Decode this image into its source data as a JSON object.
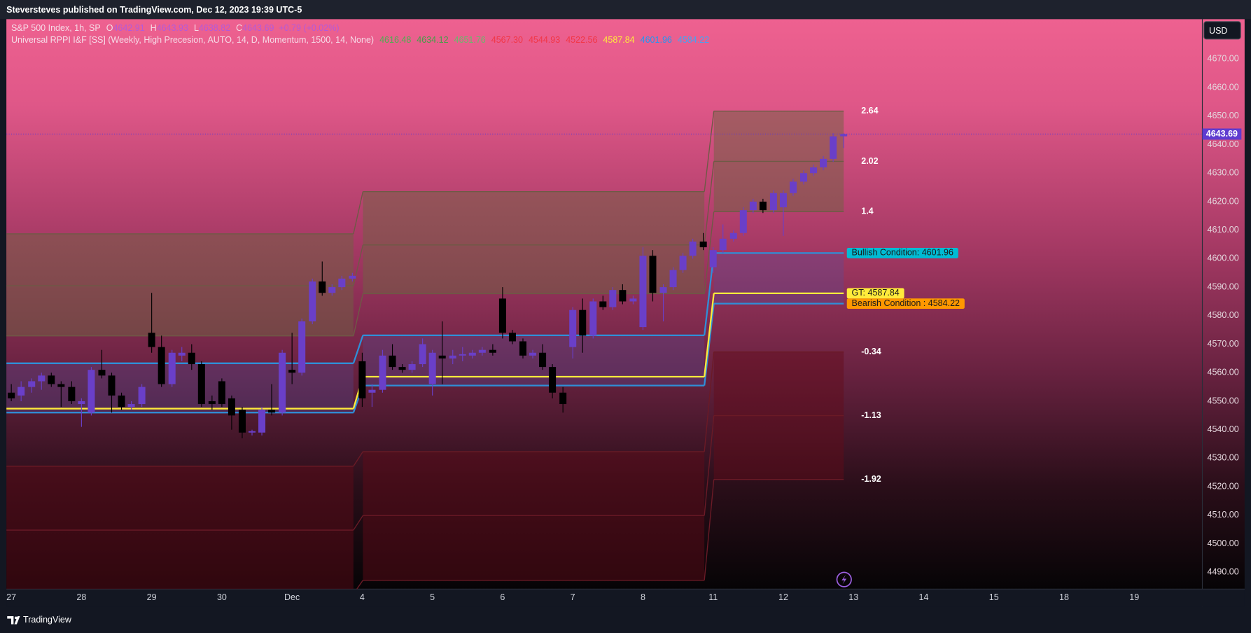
{
  "header": {
    "published": "Steversteves published on TradingView.com, Dec 12, 2023 19:39 UTC-5"
  },
  "footer": {
    "brand": "TradingView"
  },
  "chart_data": {
    "type": "candlestick",
    "legend": {
      "symbol": "S&P 500 Index, 1h, SP",
      "ohlc": [
        {
          "key": "O",
          "text": "4642.91"
        },
        {
          "key": "H",
          "text": "4643.93"
        },
        {
          "key": "L",
          "text": "4638.82"
        },
        {
          "key": "C",
          "text": "4643.69"
        }
      ],
      "change": "+0.79 (+0.02%)",
      "color": "#b45ad8"
    },
    "indicator": {
      "name": "Universal RPPI I&F [SS] (Weekly, High Precesion, AUTO, 14, D, Momentum, 1500, 14, None)",
      "values": [
        {
          "text": "4616.48",
          "color": "#4caf50"
        },
        {
          "text": "4634.12",
          "color": "#43a047"
        },
        {
          "text": "4651.76",
          "color": "#66bb6a"
        },
        {
          "text": "4567.30",
          "color": "#f23645"
        },
        {
          "text": "4544.93",
          "color": "#f23645"
        },
        {
          "text": "4522.56",
          "color": "#f23645"
        },
        {
          "text": "4587.84",
          "color": "#ffeb3b"
        },
        {
          "text": "4601.96",
          "color": "#2196f3"
        },
        {
          "text": "4584.22",
          "color": "#42a5f5"
        }
      ]
    },
    "currency": "USD",
    "x": [
      0,
      0.14,
      0.29,
      0.43,
      0.57,
      0.71,
      0.86,
      1,
      1.14,
      1.29,
      1.43,
      1.57,
      1.71,
      1.86,
      2,
      2.14,
      2.29,
      2.43,
      2.57,
      2.71,
      2.86,
      3,
      3.14,
      3.29,
      3.43,
      3.57,
      3.71,
      3.86,
      4,
      4.14,
      4.29,
      4.43,
      4.57,
      4.71,
      4.86,
      5,
      5.14,
      5.29,
      5.43,
      5.57,
      5.71,
      5.86,
      6,
      6.14,
      6.29,
      6.43,
      6.57,
      6.71,
      6.86,
      7,
      7.14,
      7.29,
      7.43,
      7.57,
      7.71,
      7.86,
      8,
      8.14,
      8.29,
      8.43,
      8.57,
      8.71,
      8.86,
      9,
      9.14,
      9.29,
      9.43,
      9.57,
      9.71,
      9.86,
      10,
      10.14,
      10.29,
      10.43,
      10.57,
      10.71,
      10.86,
      11,
      11.14,
      11.29,
      11.43,
      11.57,
      11.71,
      11.86
    ],
    "open": [
      4553,
      4552,
      4555,
      4557,
      4559,
      4556,
      4555,
      4549,
      4546,
      4561,
      4559,
      4552,
      4548,
      4549,
      4574,
      4569,
      4556,
      4566,
      4567,
      4563,
      4550,
      4557,
      4551,
      4547,
      4539,
      4539,
      4547,
      4546,
      4561,
      4560,
      4578,
      4592,
      4588,
      4590,
      4593,
      4564,
      4553,
      4554,
      4566,
      4562,
      4561,
      4563,
      4556,
      4566,
      4565,
      4566,
      4566,
      4567,
      4568,
      4586,
      4574,
      4571,
      4566,
      4567,
      4562,
      4553,
      4569,
      4582,
      4573,
      4585,
      4583,
      4589,
      4585,
      4576,
      4601,
      4588,
      4590,
      4596,
      4601,
      4606,
      4597,
      4603,
      4607,
      4609,
      4617,
      4620,
      4617,
      4618,
      4623,
      4627,
      4630,
      4632,
      4635,
      4642.91
    ],
    "high": [
      4556,
      4557,
      4558,
      4560,
      4560,
      4557,
      4557,
      4551,
      4562,
      4568,
      4560,
      4553,
      4550,
      4556,
      4588,
      4573,
      4568,
      4569,
      4570,
      4564,
      4552,
      4558,
      4552,
      4548,
      4540,
      4548,
      4556,
      4568,
      4574,
      4579,
      4593,
      4599,
      4591,
      4594,
      4595,
      4567,
      4556,
      4568,
      4570,
      4563,
      4564,
      4572,
      4568,
      4578,
      4568,
      4569,
      4568,
      4569,
      4570,
      4590,
      4575,
      4572,
      4568,
      4570,
      4563,
      4555,
      4583,
      4586,
      4586,
      4587,
      4590,
      4591,
      4587,
      4604,
      4603,
      4591,
      4597,
      4602,
      4607,
      4609,
      4604,
      4612,
      4610,
      4618,
      4621,
      4621,
      4624,
      4624,
      4628,
      4631,
      4633,
      4636,
      4644,
      4643.93
    ],
    "low": [
      4550,
      4550,
      4553,
      4554,
      4555,
      4548,
      4549,
      4541,
      4545,
      4558,
      4546,
      4547,
      4547,
      4548,
      4567,
      4555,
      4555,
      4564,
      4561,
      4548,
      4547,
      4548,
      4540,
      4537,
      4538,
      4538,
      4545,
      4545,
      4556,
      4559,
      4577,
      4587,
      4587,
      4589,
      4592,
      4548,
      4548,
      4553,
      4561,
      4560,
      4560,
      4562,
      4552,
      4556,
      4563,
      4564,
      4565,
      4566,
      4566,
      4572,
      4570,
      4565,
      4565,
      4561,
      4551,
      4546,
      4565,
      4567,
      4572,
      4582,
      4582,
      4584,
      4584,
      4575,
      4585,
      4578,
      4589,
      4595,
      4600,
      4603,
      4595,
      4602,
      4606,
      4608,
      4616,
      4616,
      4616,
      4608,
      4622,
      4626,
      4629,
      4631,
      4634,
      4638.82
    ],
    "close": [
      4551,
      4555,
      4557,
      4559,
      4556,
      4555,
      4550,
      4550,
      4561,
      4559,
      4552,
      4548,
      4549,
      4555,
      4569,
      4556,
      4567,
      4567,
      4563,
      4549,
      4549,
      4549,
      4545,
      4539,
      4539.5,
      4547,
      4546,
      4567,
      4560,
      4578,
      4592,
      4588,
      4590,
      4593,
      4594,
      4551,
      4554,
      4566,
      4562,
      4561,
      4563,
      4570,
      4567,
      4565,
      4566,
      4566.5,
      4567,
      4568,
      4567,
      4574,
      4571,
      4566,
      4567,
      4562,
      4553,
      4549,
      4582,
      4573,
      4585,
      4583,
      4589,
      4585,
      4586,
      4601,
      4588,
      4590,
      4596,
      4601,
      4606,
      4604,
      4603,
      4607,
      4609,
      4617,
      4620,
      4617,
      4623,
      4623,
      4627,
      4630,
      4632,
      4635,
      4642.9,
      4643.69
    ],
    "up_color": "#6a3fc8",
    "down_color": "#000000",
    "price_line_color": "#5e3bd0",
    "xlim": [
      -0.07,
      16.97
    ],
    "xticks": [
      {
        "value": 0,
        "label": "27"
      },
      {
        "value": 1,
        "label": "28"
      },
      {
        "value": 2,
        "label": "29"
      },
      {
        "value": 3,
        "label": "30"
      },
      {
        "value": 4,
        "label": "Dec"
      },
      {
        "value": 5,
        "label": "4"
      },
      {
        "value": 6,
        "label": "5"
      },
      {
        "value": 7,
        "label": "6"
      },
      {
        "value": 8,
        "label": "7"
      },
      {
        "value": 9,
        "label": "8"
      },
      {
        "value": 10,
        "label": "11"
      },
      {
        "value": 11,
        "label": "12"
      },
      {
        "value": 12,
        "label": "13"
      },
      {
        "value": 13,
        "label": "14"
      },
      {
        "value": 14,
        "label": "15"
      },
      {
        "value": 15,
        "label": "18"
      },
      {
        "value": 16,
        "label": "19"
      }
    ],
    "ylim": [
      4484.1,
      4684
    ],
    "yticks": [
      {
        "value": 4490,
        "label": "4490.00"
      },
      {
        "value": 4500,
        "label": "4500.00"
      },
      {
        "value": 4510,
        "label": "4510.00"
      },
      {
        "value": 4520,
        "label": "4520.00"
      },
      {
        "value": 4530,
        "label": "4530.00"
      },
      {
        "value": 4540,
        "label": "4540.00"
      },
      {
        "value": 4550,
        "label": "4550.00"
      },
      {
        "value": 4560,
        "label": "4560.00"
      },
      {
        "value": 4570,
        "label": "4570.00"
      },
      {
        "value": 4580,
        "label": "4580.00"
      },
      {
        "value": 4590,
        "label": "4590.00"
      },
      {
        "value": 4600,
        "label": "4600.00"
      },
      {
        "value": 4610,
        "label": "4610.00"
      },
      {
        "value": 4620,
        "label": "4620.00"
      },
      {
        "value": 4630,
        "label": "4630.00"
      },
      {
        "value": 4640,
        "label": "4640.00"
      },
      {
        "value": 4650,
        "label": "4650.00"
      },
      {
        "value": 4660,
        "label": "4660.00"
      },
      {
        "value": 4670,
        "label": "4670.00"
      }
    ],
    "level_segments": [
      [
        -0.07,
        4.875
      ],
      [
        5.01,
        9.875
      ],
      [
        10.01,
        11.86
      ]
    ],
    "levels": [
      {
        "label": "2.64",
        "values": [
          4608.7,
          4623.5,
          4651.76
        ],
        "color": "#6e5a45",
        "fill": "rgba(112,98,66,0.5)"
      },
      {
        "label": "2.02",
        "values": [
          4590.5,
          4604.8,
          4634.12
        ],
        "color": "#6e5a45",
        "fill": "rgba(112,98,66,0.5)"
      },
      {
        "label": "1.4",
        "values": [
          4572.9,
          4587.7,
          4616.48
        ],
        "color": "#6e5a45"
      },
      {
        "tag": "Bullish Condition: 4601.96",
        "tag_color": "#00bcd4",
        "values": [
          4563.3,
          4573.1,
          4601.96
        ],
        "color": "#2f8fd8",
        "fill": "rgba(80,80,160,0.3)"
      },
      {
        "tag": "Bearish Condition : 4584.22",
        "tag_color": "#ff9800",
        "values": [
          4546,
          4555.5,
          4584.22
        ],
        "color": "#2f8fd8"
      },
      {
        "tag": "GT: 4587.84",
        "tag_color": "#ffeb3b",
        "values": [
          4547.4,
          4558.6,
          4587.84
        ],
        "color": "#ffeb3b"
      },
      {
        "label": "-0.34",
        "values": [
          4527.2,
          4532.3,
          4567.3
        ],
        "color": "#6b1a26",
        "fill": "rgba(100,12,24,0.45)"
      },
      {
        "label": "-1.13",
        "values": [
          4504.8,
          4509.9,
          4544.93
        ],
        "color": "#6b1a26",
        "fill": "rgba(100,12,24,0.45)"
      },
      {
        "label": "-1.92",
        "values": [
          4482.4,
          4487.2,
          4522.56
        ],
        "color": "#6b1a26"
      }
    ]
  }
}
